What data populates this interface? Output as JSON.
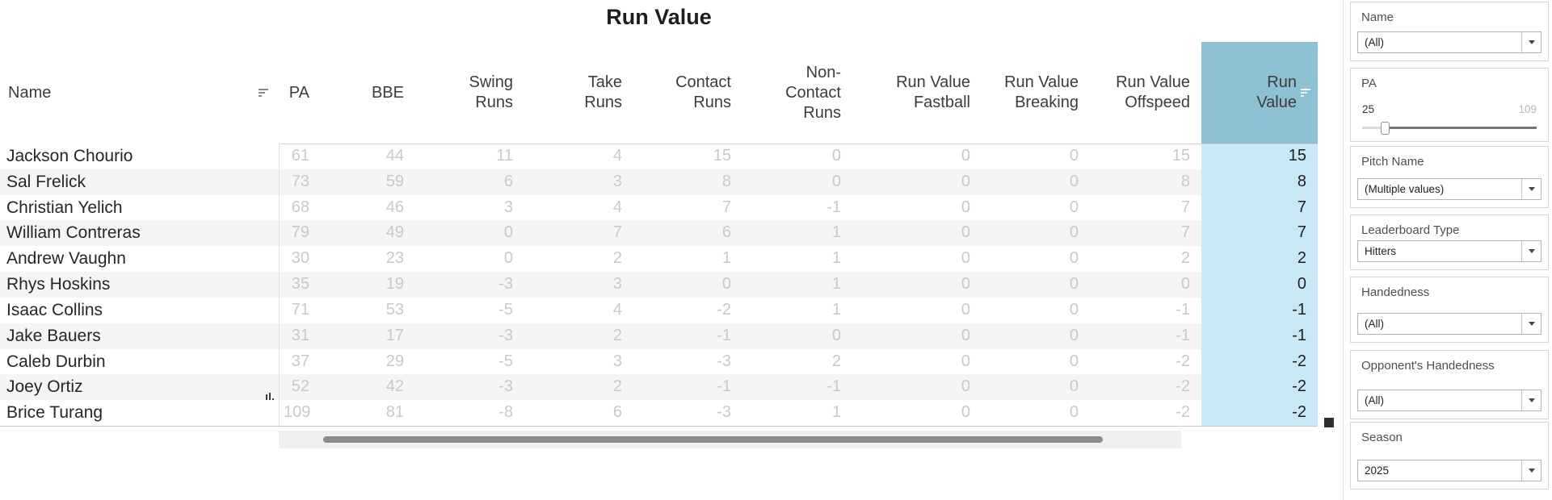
{
  "title": "Run Value",
  "colors": {
    "header_teal": "#8cc0d2",
    "highlight_cell_blue": "#c9e8f6",
    "row_stripe": "#f5f5f5",
    "muted_number_gray": "#c9c9c9"
  },
  "table": {
    "columns": [
      {
        "key": "name",
        "label": "Name"
      },
      {
        "key": "pa",
        "label": "PA"
      },
      {
        "key": "bbe",
        "label": "BBE"
      },
      {
        "key": "swing_runs",
        "label": "Swing Runs"
      },
      {
        "key": "take_runs",
        "label": "Take Runs"
      },
      {
        "key": "contact_runs",
        "label": "Contact Runs"
      },
      {
        "key": "non_contact_runs",
        "label": "Non-Contact Runs"
      },
      {
        "key": "rv_fastball",
        "label": "Run Value Fastball"
      },
      {
        "key": "rv_breaking",
        "label": "Run Value Breaking"
      },
      {
        "key": "rv_offspeed",
        "label": "Run Value Offspeed"
      },
      {
        "key": "run_value",
        "label": "Run Value",
        "highlighted": true
      }
    ],
    "rows": [
      {
        "name": "Jackson Chourio",
        "pa": 61,
        "bbe": 44,
        "swing_runs": 11,
        "take_runs": 4,
        "contact_runs": 15,
        "non_contact_runs": 0,
        "rv_fastball": 0,
        "rv_breaking": 0,
        "rv_offspeed": 15,
        "run_value": 15
      },
      {
        "name": "Sal Frelick",
        "pa": 73,
        "bbe": 59,
        "swing_runs": 6,
        "take_runs": 3,
        "contact_runs": 8,
        "non_contact_runs": 0,
        "rv_fastball": 0,
        "rv_breaking": 0,
        "rv_offspeed": 8,
        "run_value": 8
      },
      {
        "name": "Christian Yelich",
        "pa": 68,
        "bbe": 46,
        "swing_runs": 3,
        "take_runs": 4,
        "contact_runs": 7,
        "non_contact_runs": -1,
        "rv_fastball": 0,
        "rv_breaking": 0,
        "rv_offspeed": 7,
        "run_value": 7
      },
      {
        "name": "William Contreras",
        "pa": 79,
        "bbe": 49,
        "swing_runs": 0,
        "take_runs": 7,
        "contact_runs": 6,
        "non_contact_runs": 1,
        "rv_fastball": 0,
        "rv_breaking": 0,
        "rv_offspeed": 7,
        "run_value": 7
      },
      {
        "name": "Andrew Vaughn",
        "pa": 30,
        "bbe": 23,
        "swing_runs": 0,
        "take_runs": 2,
        "contact_runs": 1,
        "non_contact_runs": 1,
        "rv_fastball": 0,
        "rv_breaking": 0,
        "rv_offspeed": 2,
        "run_value": 2
      },
      {
        "name": "Rhys Hoskins",
        "pa": 35,
        "bbe": 19,
        "swing_runs": -3,
        "take_runs": 3,
        "contact_runs": 0,
        "non_contact_runs": 1,
        "rv_fastball": 0,
        "rv_breaking": 0,
        "rv_offspeed": 0,
        "run_value": 0
      },
      {
        "name": "Isaac Collins",
        "pa": 71,
        "bbe": 53,
        "swing_runs": -5,
        "take_runs": 4,
        "contact_runs": -2,
        "non_contact_runs": 1,
        "rv_fastball": 0,
        "rv_breaking": 0,
        "rv_offspeed": -1,
        "run_value": -1
      },
      {
        "name": "Jake Bauers",
        "pa": 31,
        "bbe": 17,
        "swing_runs": -3,
        "take_runs": 2,
        "contact_runs": -1,
        "non_contact_runs": 0,
        "rv_fastball": 0,
        "rv_breaking": 0,
        "rv_offspeed": -1,
        "run_value": -1
      },
      {
        "name": "Caleb Durbin",
        "pa": 37,
        "bbe": 29,
        "swing_runs": -5,
        "take_runs": 3,
        "contact_runs": -3,
        "non_contact_runs": 2,
        "rv_fastball": 0,
        "rv_breaking": 0,
        "rv_offspeed": -2,
        "run_value": -2
      },
      {
        "name": "Joey Ortiz",
        "pa": 52,
        "bbe": 42,
        "swing_runs": -3,
        "take_runs": 2,
        "contact_runs": -1,
        "non_contact_runs": -1,
        "rv_fastball": 0,
        "rv_breaking": 0,
        "rv_offspeed": -2,
        "run_value": -2,
        "mini_chart_icon": true
      },
      {
        "name": "Brice Turang",
        "pa": 109,
        "bbe": 81,
        "swing_runs": -8,
        "take_runs": 6,
        "contact_runs": -3,
        "non_contact_runs": 1,
        "rv_fastball": 0,
        "rv_breaking": 0,
        "rv_offspeed": -2,
        "run_value": -2
      }
    ]
  },
  "filters": [
    {
      "id": "name",
      "label": "Name",
      "type": "dropdown",
      "value": "(All)"
    },
    {
      "id": "pa",
      "label": "PA",
      "type": "range",
      "min_value": "25",
      "max_value": "109",
      "slider_position": 0.13
    },
    {
      "id": "pitch_name",
      "label": "Pitch Name",
      "type": "dropdown",
      "value": "(Multiple values)"
    },
    {
      "id": "leaderboard_type",
      "label": "Leaderboard Type",
      "type": "dropdown",
      "value": "Hitters"
    },
    {
      "id": "handedness",
      "label": "Handedness",
      "type": "dropdown",
      "value": "(All)"
    },
    {
      "id": "opponents_handedness",
      "label": "Opponent's Handedness",
      "type": "dropdown",
      "value": "(All)"
    },
    {
      "id": "season",
      "label": "Season",
      "type": "dropdown",
      "value": "2025"
    }
  ]
}
